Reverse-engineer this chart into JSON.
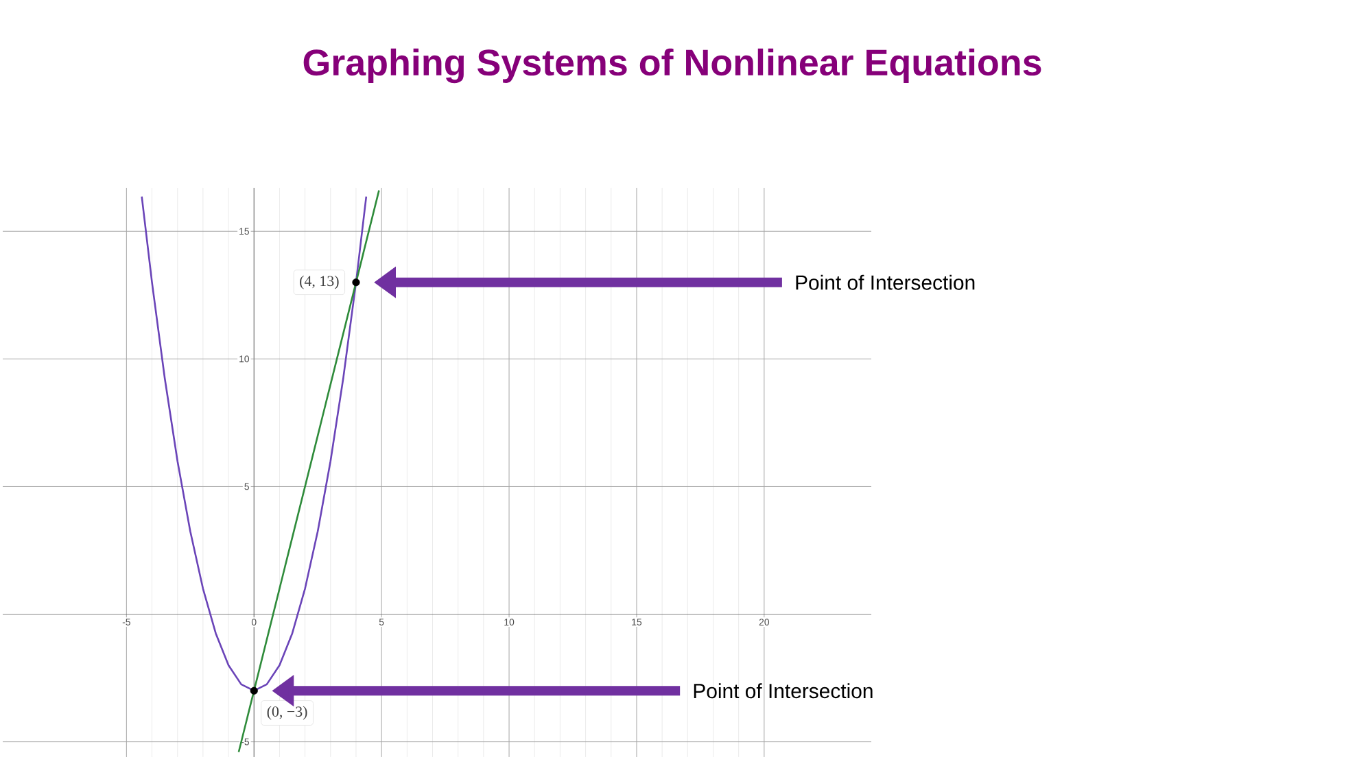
{
  "chart_data": {
    "type": "line",
    "title": "Graphing Systems of Nonlinear Equations",
    "xlim": [
      -9.85,
      24.2
    ],
    "ylim": [
      -5.6,
      16.7
    ],
    "xticks": [
      -5,
      0,
      5,
      10,
      15,
      20
    ],
    "yticks": [
      -5,
      5,
      10,
      15
    ],
    "grid": true,
    "line_style": "solid",
    "series": [
      {
        "color": "#6a44b8",
        "x": [
          -4.4,
          -4,
          -3.5,
          -3,
          -2.5,
          -2,
          -1.5,
          -1,
          -0.5,
          0,
          0.5,
          1,
          1.5,
          2,
          2.5,
          3,
          3.5,
          4,
          4.4
        ],
        "values": [
          16.36,
          13,
          9.25,
          6,
          3.25,
          1,
          -0.75,
          -2,
          -2.75,
          -3,
          -2.75,
          -2,
          -0.75,
          1,
          3.25,
          6,
          9.25,
          13,
          16.36
        ]
      },
      {
        "color": "#2e8b3a",
        "x": [
          -0.6,
          4.9
        ],
        "values": [
          -5.4,
          16.6
        ]
      },
      {
        "type": "scatter",
        "color": "#000000",
        "marker": "circle",
        "x": [
          0,
          4
        ],
        "values": [
          -3,
          13
        ],
        "value_labels": [
          "(0, −3)",
          "(4, 13)"
        ]
      }
    ],
    "annotations": [
      "Point of Intersection",
      "Point of Intersection"
    ]
  }
}
